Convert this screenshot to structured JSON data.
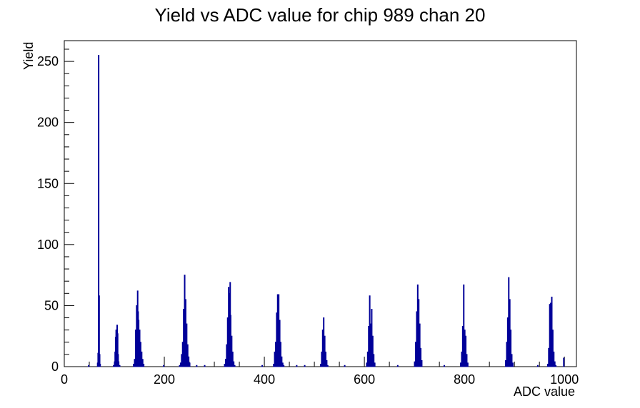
{
  "chart_data": {
    "type": "bar",
    "title": "Yield vs ADC value for chip 989 chan 20",
    "xlabel": "ADC value",
    "ylabel": "Yield",
    "xlim": [
      0,
      1024
    ],
    "ylim": [
      0,
      267
    ],
    "x_ticks": [
      "0",
      "200",
      "400",
      "600",
      "800",
      "1000"
    ],
    "y_ticks": [
      "0",
      "50",
      "100",
      "150",
      "200",
      "250"
    ],
    "grid": false,
    "legend": "none",
    "line_color": "#000099",
    "points": [
      [
        48,
        1
      ],
      [
        66,
        3
      ],
      [
        67,
        11
      ],
      [
        68,
        255
      ],
      [
        69,
        58
      ],
      [
        70,
        10
      ],
      [
        71,
        2
      ],
      [
        98,
        1
      ],
      [
        100,
        4
      ],
      [
        101,
        12
      ],
      [
        102,
        24
      ],
      [
        103,
        30
      ],
      [
        104,
        20
      ],
      [
        105,
        34
      ],
      [
        106,
        27
      ],
      [
        107,
        10
      ],
      [
        108,
        4
      ],
      [
        110,
        1
      ],
      [
        138,
        2
      ],
      [
        140,
        6
      ],
      [
        142,
        30
      ],
      [
        144,
        50
      ],
      [
        146,
        62
      ],
      [
        147,
        45
      ],
      [
        148,
        38
      ],
      [
        150,
        30
      ],
      [
        152,
        20
      ],
      [
        154,
        12
      ],
      [
        156,
        6
      ],
      [
        158,
        2
      ],
      [
        198,
        1
      ],
      [
        230,
        1
      ],
      [
        232,
        3
      ],
      [
        234,
        10
      ],
      [
        236,
        20
      ],
      [
        238,
        47
      ],
      [
        240,
        75
      ],
      [
        242,
        55
      ],
      [
        244,
        35
      ],
      [
        246,
        18
      ],
      [
        248,
        8
      ],
      [
        250,
        3
      ],
      [
        264,
        1
      ],
      [
        280,
        1
      ],
      [
        320,
        2
      ],
      [
        322,
        6
      ],
      [
        324,
        18
      ],
      [
        326,
        40
      ],
      [
        328,
        65
      ],
      [
        330,
        60
      ],
      [
        331,
        69
      ],
      [
        332,
        42
      ],
      [
        334,
        25
      ],
      [
        336,
        12
      ],
      [
        338,
        4
      ],
      [
        340,
        1
      ],
      [
        395,
        1
      ],
      [
        418,
        2
      ],
      [
        420,
        12
      ],
      [
        422,
        20
      ],
      [
        424,
        44
      ],
      [
        426,
        59
      ],
      [
        428,
        59
      ],
      [
        430,
        38
      ],
      [
        432,
        20
      ],
      [
        434,
        8
      ],
      [
        436,
        3
      ],
      [
        438,
        1
      ],
      [
        464,
        1
      ],
      [
        480,
        1
      ],
      [
        512,
        2
      ],
      [
        514,
        12
      ],
      [
        516,
        30
      ],
      [
        518,
        40
      ],
      [
        520,
        25
      ],
      [
        522,
        12
      ],
      [
        524,
        5
      ],
      [
        526,
        1
      ],
      [
        560,
        1
      ],
      [
        604,
        3
      ],
      [
        606,
        12
      ],
      [
        608,
        33
      ],
      [
        610,
        58
      ],
      [
        612,
        35
      ],
      [
        614,
        47
      ],
      [
        616,
        25
      ],
      [
        618,
        10
      ],
      [
        620,
        3
      ],
      [
        666,
        1
      ],
      [
        700,
        4
      ],
      [
        702,
        20
      ],
      [
        704,
        45
      ],
      [
        706,
        67
      ],
      [
        708,
        55
      ],
      [
        710,
        35
      ],
      [
        712,
        15
      ],
      [
        714,
        5
      ],
      [
        759,
        1
      ],
      [
        792,
        3
      ],
      [
        794,
        12
      ],
      [
        796,
        33
      ],
      [
        798,
        67
      ],
      [
        800,
        30
      ],
      [
        802,
        25
      ],
      [
        804,
        10
      ],
      [
        806,
        3
      ],
      [
        882,
        5
      ],
      [
        884,
        20
      ],
      [
        886,
        40
      ],
      [
        888,
        73
      ],
      [
        890,
        55
      ],
      [
        892,
        30
      ],
      [
        894,
        10
      ],
      [
        896,
        3
      ],
      [
        946,
        1
      ],
      [
        966,
        2
      ],
      [
        968,
        15
      ],
      [
        970,
        51
      ],
      [
        972,
        52
      ],
      [
        974,
        57
      ],
      [
        976,
        30
      ],
      [
        978,
        12
      ],
      [
        980,
        4
      ],
      [
        982,
        1
      ],
      [
        998,
        7
      ]
    ]
  }
}
